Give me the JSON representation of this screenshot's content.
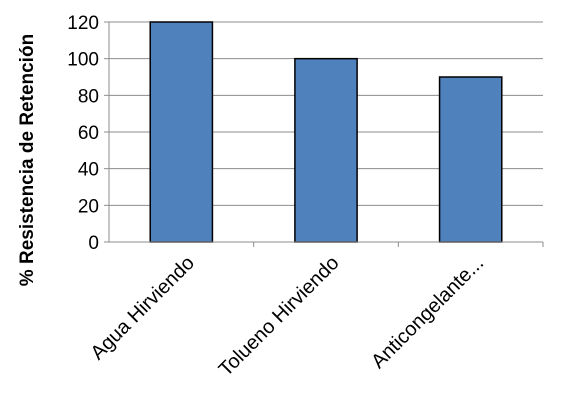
{
  "chart_data": {
    "type": "bar",
    "title": "",
    "xlabel": "",
    "ylabel": "% Resistencia de Retención",
    "categories": [
      "Agua Hirviendo",
      "Tolueno Hirviendo",
      "Anticongelante..."
    ],
    "values": [
      120,
      100,
      90
    ],
    "ylim": [
      0,
      120
    ],
    "yticks": [
      "0",
      "20",
      "40",
      "60",
      "80",
      "100",
      "120"
    ],
    "grid": true,
    "legend": "none",
    "bar_color": "#4f81bd",
    "bar_edge_color": "#000000",
    "grid_color": "#8c8c8c"
  }
}
